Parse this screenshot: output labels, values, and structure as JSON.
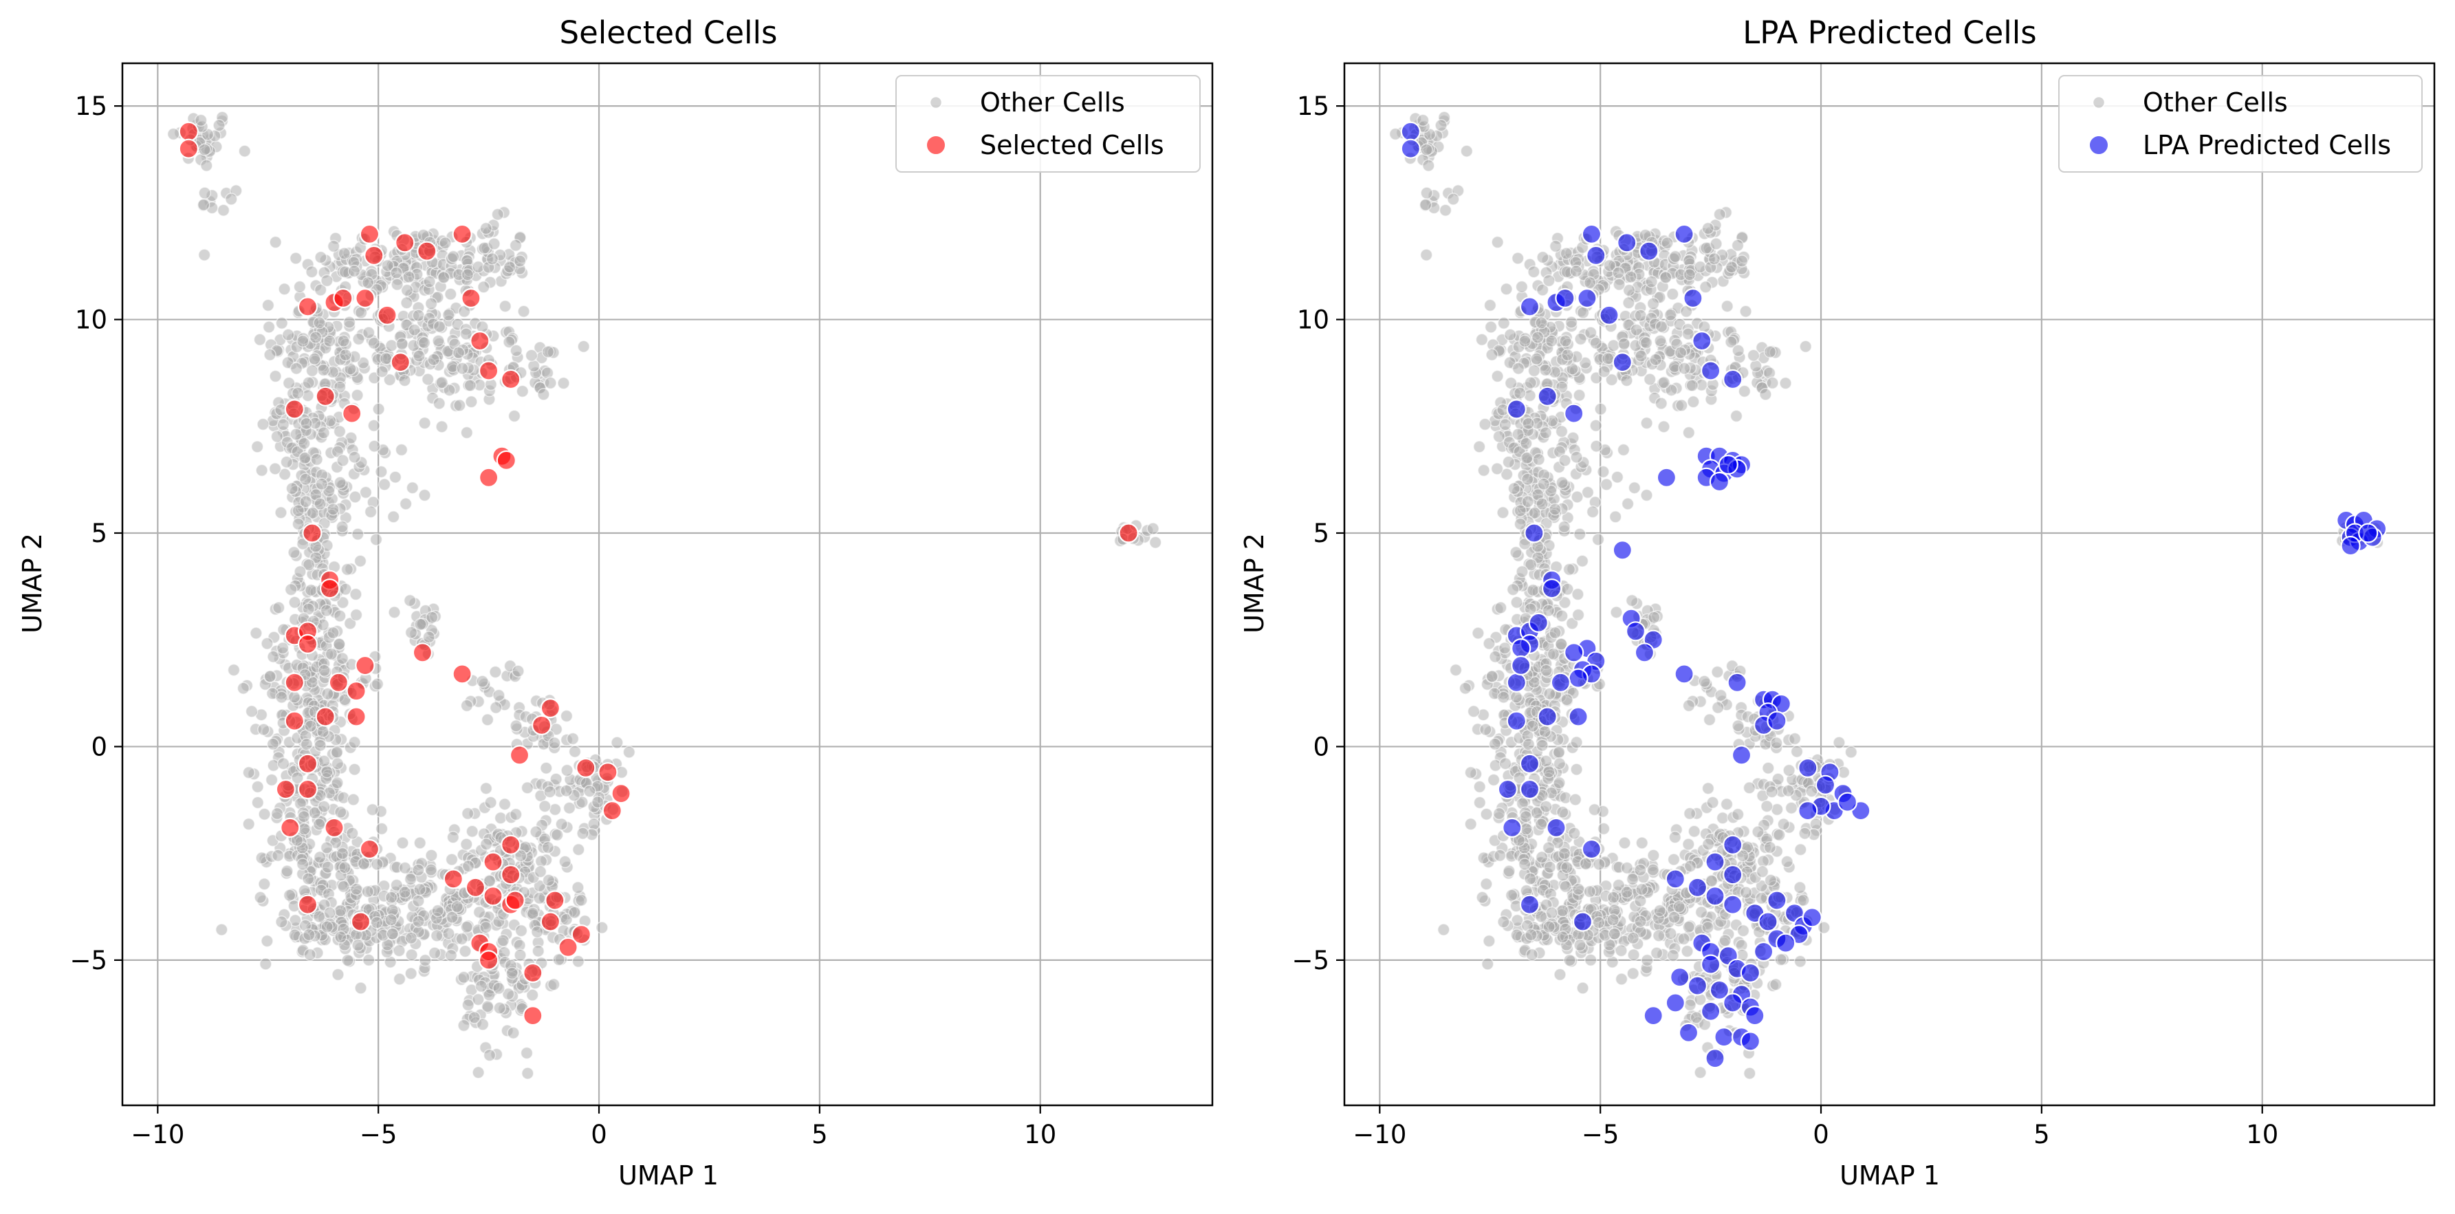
{
  "chart_data": [
    {
      "type": "scatter",
      "title": "Selected Cells",
      "xlabel": "UMAP 1",
      "ylabel": "UMAP 2",
      "xlim": [
        -10.8,
        13.9
      ],
      "ylim": [
        -8.4,
        16.0
      ],
      "xticks": [
        -10,
        -5,
        0,
        5,
        10
      ],
      "yticks": [
        -5,
        0,
        5,
        10,
        15
      ],
      "xtick_labels": [
        "−10",
        "−5",
        "0",
        "5",
        "10"
      ],
      "ytick_labels": [
        "−5",
        "0",
        "5",
        "10",
        "15"
      ],
      "grid": true,
      "legend": {
        "position": "top-right",
        "entries": [
          "Other Cells",
          "Selected Cells"
        ]
      },
      "series": [
        {
          "name": "Other Cells",
          "color": "#a9a9a9",
          "opacity": 0.5,
          "marker": "small-circle",
          "values_note": ""
        },
        {
          "name": "Selected Cells",
          "color": "#ff0000",
          "opacity": 0.6,
          "marker": "circle",
          "points": [
            [
              -9.3,
              14.4
            ],
            [
              -9.3,
              14.0
            ],
            [
              -5.2,
              12.0
            ],
            [
              -5.1,
              11.5
            ],
            [
              -4.4,
              11.8
            ],
            [
              -3.9,
              11.6
            ],
            [
              -3.1,
              12.0
            ],
            [
              -6.6,
              10.3
            ],
            [
              -6.0,
              10.4
            ],
            [
              -5.8,
              10.5
            ],
            [
              -5.3,
              10.5
            ],
            [
              -4.8,
              10.1
            ],
            [
              -2.9,
              10.5
            ],
            [
              -2.7,
              9.5
            ],
            [
              -4.5,
              9.0
            ],
            [
              -2.5,
              8.8
            ],
            [
              -2.0,
              8.6
            ],
            [
              -6.9,
              7.9
            ],
            [
              -6.2,
              8.2
            ],
            [
              -5.6,
              7.8
            ],
            [
              -2.2,
              6.8
            ],
            [
              -2.1,
              6.7
            ],
            [
              -2.5,
              6.3
            ],
            [
              -6.5,
              5.0
            ],
            [
              -6.1,
              3.9
            ],
            [
              -6.1,
              3.7
            ],
            [
              -6.9,
              2.6
            ],
            [
              -6.6,
              2.7
            ],
            [
              -6.6,
              2.4
            ],
            [
              -4.0,
              2.2
            ],
            [
              -6.9,
              1.5
            ],
            [
              -5.9,
              1.5
            ],
            [
              -5.5,
              1.3
            ],
            [
              -5.3,
              1.9
            ],
            [
              -3.1,
              1.7
            ],
            [
              -6.9,
              0.6
            ],
            [
              -6.2,
              0.7
            ],
            [
              -5.5,
              0.7
            ],
            [
              -1.1,
              0.9
            ],
            [
              -1.3,
              0.5
            ],
            [
              -6.6,
              -0.4
            ],
            [
              -1.8,
              -0.2
            ],
            [
              -0.3,
              -0.5
            ],
            [
              0.2,
              -0.6
            ],
            [
              -7.1,
              -1.0
            ],
            [
              -6.6,
              -1.0
            ],
            [
              0.5,
              -1.1
            ],
            [
              0.3,
              -1.5
            ],
            [
              -7.0,
              -1.9
            ],
            [
              -6.0,
              -1.9
            ],
            [
              -5.2,
              -2.4
            ],
            [
              -2.0,
              -2.3
            ],
            [
              -2.4,
              -2.7
            ],
            [
              -3.3,
              -3.1
            ],
            [
              -2.0,
              -3.0
            ],
            [
              -2.8,
              -3.3
            ],
            [
              -2.4,
              -3.5
            ],
            [
              -2.0,
              -3.7
            ],
            [
              -1.9,
              -3.6
            ],
            [
              -1.0,
              -3.6
            ],
            [
              -6.6,
              -3.7
            ],
            [
              -5.4,
              -4.1
            ],
            [
              -1.1,
              -4.1
            ],
            [
              -0.4,
              -4.4
            ],
            [
              -2.7,
              -4.6
            ],
            [
              -2.5,
              -4.8
            ],
            [
              -2.5,
              -5.0
            ],
            [
              -0.7,
              -4.7
            ],
            [
              -1.5,
              -5.3
            ],
            [
              -1.5,
              -6.3
            ],
            [
              12.0,
              5.0
            ]
          ]
        }
      ]
    },
    {
      "type": "scatter",
      "title": "LPA Predicted Cells",
      "xlabel": "UMAP 1",
      "ylabel": "UMAP 2",
      "xlim": [
        -10.8,
        13.9
      ],
      "ylim": [
        -8.4,
        16.0
      ],
      "xticks": [
        -10,
        -5,
        0,
        5,
        10
      ],
      "yticks": [
        -5,
        0,
        5,
        10,
        15
      ],
      "xtick_labels": [
        "−10",
        "−5",
        "0",
        "5",
        "10"
      ],
      "ytick_labels": [
        "−5",
        "0",
        "5",
        "10",
        "15"
      ],
      "grid": true,
      "legend": {
        "position": "top-right",
        "entries": [
          "Other Cells",
          "LPA Predicted Cells"
        ]
      },
      "series": [
        {
          "name": "Other Cells",
          "color": "#a9a9a9",
          "opacity": 0.5,
          "marker": "small-circle"
        },
        {
          "name": "LPA Predicted Cells",
          "color": "#0000ee",
          "opacity": 0.6,
          "marker": "circle",
          "points": [
            [
              -9.3,
              14.4
            ],
            [
              -9.3,
              14.0
            ],
            [
              -5.2,
              12.0
            ],
            [
              -5.1,
              11.5
            ],
            [
              -4.4,
              11.8
            ],
            [
              -3.9,
              11.6
            ],
            [
              -3.1,
              12.0
            ],
            [
              -6.6,
              10.3
            ],
            [
              -6.0,
              10.4
            ],
            [
              -5.8,
              10.5
            ],
            [
              -5.3,
              10.5
            ],
            [
              -4.8,
              10.1
            ],
            [
              -2.9,
              10.5
            ],
            [
              -2.7,
              9.5
            ],
            [
              -4.5,
              9.0
            ],
            [
              -2.5,
              8.8
            ],
            [
              -2.0,
              8.6
            ],
            [
              -6.9,
              7.9
            ],
            [
              -6.2,
              8.2
            ],
            [
              -5.6,
              7.8
            ],
            [
              -2.6,
              6.8
            ],
            [
              -2.3,
              6.8
            ],
            [
              -2.0,
              6.7
            ],
            [
              -1.8,
              6.6
            ],
            [
              -2.5,
              6.5
            ],
            [
              -2.2,
              6.4
            ],
            [
              -2.6,
              6.3
            ],
            [
              -2.3,
              6.2
            ],
            [
              -1.9,
              6.5
            ],
            [
              -2.1,
              6.6
            ],
            [
              -3.5,
              6.3
            ],
            [
              -6.5,
              5.0
            ],
            [
              -4.5,
              4.6
            ],
            [
              -6.1,
              3.9
            ],
            [
              -6.1,
              3.7
            ],
            [
              -4.3,
              3.0
            ],
            [
              -4.2,
              2.7
            ],
            [
              -3.8,
              2.5
            ],
            [
              -4.0,
              2.2
            ],
            [
              -6.9,
              2.6
            ],
            [
              -6.6,
              2.7
            ],
            [
              -6.6,
              2.4
            ],
            [
              -6.8,
              2.3
            ],
            [
              -6.4,
              2.9
            ],
            [
              -5.3,
              2.3
            ],
            [
              -5.6,
              2.2
            ],
            [
              -5.1,
              2.0
            ],
            [
              -5.4,
              1.8
            ],
            [
              -5.2,
              1.7
            ],
            [
              -5.5,
              1.6
            ],
            [
              -3.1,
              1.7
            ],
            [
              -6.9,
              1.5
            ],
            [
              -5.9,
              1.5
            ],
            [
              -6.8,
              1.9
            ],
            [
              -1.9,
              1.5
            ],
            [
              -6.9,
              0.6
            ],
            [
              -6.2,
              0.7
            ],
            [
              -5.5,
              0.7
            ],
            [
              -1.3,
              1.1
            ],
            [
              -1.1,
              1.1
            ],
            [
              -0.9,
              1.0
            ],
            [
              -1.2,
              0.8
            ],
            [
              -1.3,
              0.5
            ],
            [
              -1.0,
              0.6
            ],
            [
              -6.6,
              -0.4
            ],
            [
              -1.8,
              -0.2
            ],
            [
              -0.3,
              -0.5
            ],
            [
              0.2,
              -0.6
            ],
            [
              0.1,
              -0.9
            ],
            [
              -7.1,
              -1.0
            ],
            [
              -6.6,
              -1.0
            ],
            [
              0.5,
              -1.1
            ],
            [
              0.3,
              -1.5
            ],
            [
              0.0,
              -1.4
            ],
            [
              -0.3,
              -1.5
            ],
            [
              0.9,
              -1.5
            ],
            [
              0.6,
              -1.3
            ],
            [
              -7.0,
              -1.9
            ],
            [
              -6.0,
              -1.9
            ],
            [
              -5.2,
              -2.4
            ],
            [
              -2.0,
              -2.3
            ],
            [
              -2.4,
              -2.7
            ],
            [
              -3.3,
              -3.1
            ],
            [
              -2.0,
              -3.0
            ],
            [
              -2.8,
              -3.3
            ],
            [
              -2.4,
              -3.5
            ],
            [
              -2.0,
              -3.7
            ],
            [
              -1.0,
              -3.6
            ],
            [
              -6.6,
              -3.7
            ],
            [
              -5.4,
              -4.1
            ],
            [
              -1.5,
              -3.9
            ],
            [
              -1.2,
              -4.1
            ],
            [
              -0.6,
              -3.9
            ],
            [
              -0.4,
              -4.2
            ],
            [
              -0.2,
              -4.0
            ],
            [
              -0.5,
              -4.4
            ],
            [
              -1.0,
              -4.5
            ],
            [
              -0.8,
              -4.6
            ],
            [
              -1.3,
              -4.8
            ],
            [
              -2.7,
              -4.6
            ],
            [
              -2.5,
              -4.8
            ],
            [
              -2.1,
              -4.9
            ],
            [
              -2.5,
              -5.1
            ],
            [
              -1.9,
              -5.2
            ],
            [
              -1.6,
              -5.3
            ],
            [
              -3.2,
              -5.4
            ],
            [
              -2.8,
              -5.6
            ],
            [
              -2.3,
              -5.7
            ],
            [
              -1.8,
              -5.8
            ],
            [
              -3.3,
              -6.0
            ],
            [
              -2.0,
              -6.0
            ],
            [
              -1.6,
              -6.1
            ],
            [
              -2.5,
              -6.2
            ],
            [
              -3.8,
              -6.3
            ],
            [
              -1.5,
              -6.3
            ],
            [
              -3.0,
              -6.7
            ],
            [
              -2.2,
              -6.8
            ],
            [
              -1.8,
              -6.8
            ],
            [
              -1.6,
              -6.9
            ],
            [
              -2.4,
              -7.3
            ],
            [
              11.9,
              5.3
            ],
            [
              12.1,
              5.2
            ],
            [
              12.3,
              5.3
            ],
            [
              12.6,
              5.1
            ],
            [
              12.0,
              4.9
            ],
            [
              12.2,
              4.8
            ],
            [
              12.5,
              4.9
            ],
            [
              12.1,
              5.0
            ],
            [
              12.4,
              5.0
            ],
            [
              12.0,
              4.7
            ]
          ]
        }
      ]
    }
  ]
}
